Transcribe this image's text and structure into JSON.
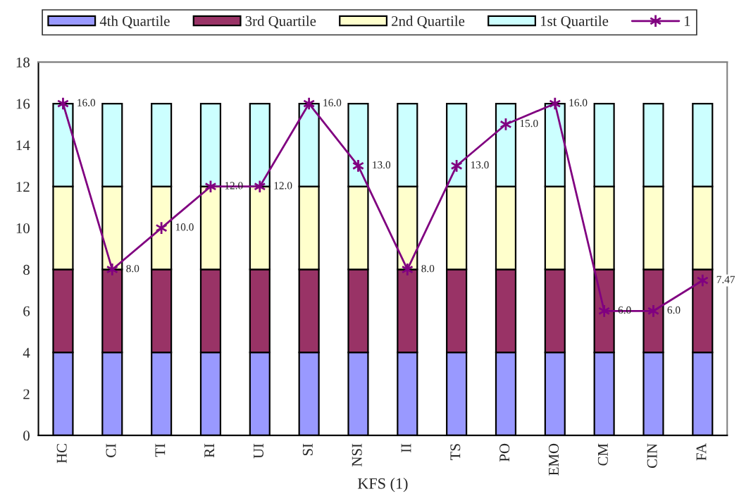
{
  "chart_data": {
    "type": "bar",
    "stacked": true,
    "xlabel": "KFS (1)",
    "categories": [
      "HC",
      "CI",
      "TI",
      "RI",
      "UI",
      "SI",
      "NSI",
      "II",
      "TS",
      "PO",
      "EMO",
      "CM",
      "CIN",
      "FA"
    ],
    "series": [
      {
        "name": "4th Quartile",
        "color": "#9999ff",
        "values": [
          4,
          4,
          4,
          4,
          4,
          4,
          4,
          4,
          4,
          4,
          4,
          4,
          4,
          4
        ]
      },
      {
        "name": "3rd Quartile",
        "color": "#993366",
        "values": [
          4,
          4,
          4,
          4,
          4,
          4,
          4,
          4,
          4,
          4,
          4,
          4,
          4,
          4
        ]
      },
      {
        "name": "2nd Quartile",
        "color": "#ffffcc",
        "values": [
          4,
          4,
          4,
          4,
          4,
          4,
          4,
          4,
          4,
          4,
          4,
          4,
          4,
          4
        ]
      },
      {
        "name": "1st Quartile",
        "color": "#ccffff",
        "values": [
          4,
          4,
          4,
          4,
          4,
          4,
          4,
          4,
          4,
          4,
          4,
          4,
          4,
          4
        ]
      },
      {
        "name": "1",
        "type": "line",
        "color": "#800080",
        "marker": "cross",
        "line_style": "solid",
        "values": [
          16,
          8,
          10,
          12,
          12,
          16,
          13,
          8,
          13,
          15,
          16,
          6,
          6,
          7.47
        ],
        "value_labels": [
          "16.0",
          "8.0",
          "10.0",
          "12.0",
          "12.0",
          "16.0",
          "13.0",
          "8.0",
          "13.0",
          "15.0",
          "16.0",
          "6.0",
          "6.0",
          "7.47"
        ]
      }
    ],
    "ylim": [
      0,
      18
    ],
    "yticks": [
      0,
      2,
      4,
      6,
      8,
      10,
      12,
      14,
      16,
      18
    ],
    "grid": false,
    "legend": "top"
  }
}
